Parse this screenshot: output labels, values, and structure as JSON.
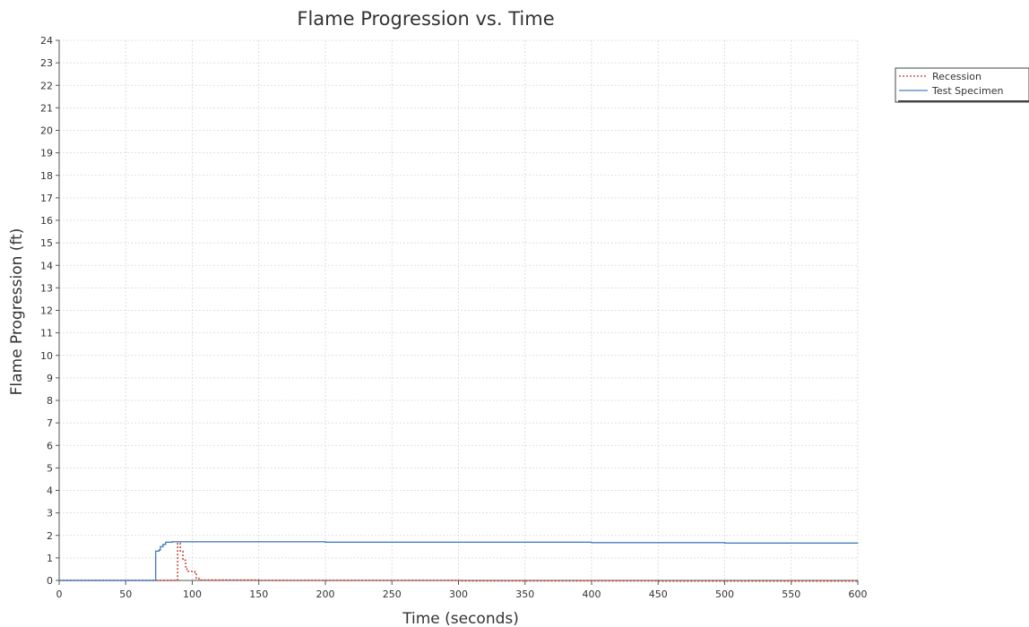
{
  "chart_data": {
    "type": "line",
    "title": "Flame Progression vs. Time",
    "xlabel": "Time (seconds)",
    "ylabel": "Flame Progression (ft)",
    "xlim": [
      0,
      600
    ],
    "ylim": [
      0,
      24
    ],
    "x_ticks": [
      "0",
      "50",
      "100",
      "150",
      "200",
      "250",
      "300",
      "350",
      "400",
      "450",
      "500",
      "550",
      "600"
    ],
    "y_ticks": [
      "0",
      "1",
      "2",
      "3",
      "4",
      "5",
      "6",
      "7",
      "8",
      "9",
      "10",
      "11",
      "12",
      "13",
      "14",
      "15",
      "16",
      "17",
      "18",
      "19",
      "20",
      "21",
      "22",
      "23",
      "24"
    ],
    "grid": true,
    "legend_position": "top-right outside",
    "series": [
      {
        "name": "Recession",
        "color": "#c0392b",
        "style": "dotted",
        "x": [
          0,
          88,
          89,
          91,
          93,
          95,
          96,
          100,
          102,
          103,
          105,
          150,
          300,
          450,
          600
        ],
        "y": [
          0,
          0,
          1.65,
          1.3,
          0.9,
          0.6,
          0.4,
          0.4,
          0.35,
          0.1,
          0.02,
          0.0,
          -0.02,
          -0.03,
          -0.05
        ]
      },
      {
        "name": "Test Specimen",
        "color": "#4a7fc1",
        "style": "solid",
        "x": [
          0,
          72,
          72.5,
          75,
          76,
          78,
          80,
          85,
          100,
          200,
          300,
          400,
          500,
          600
        ],
        "y": [
          0,
          0,
          1.3,
          1.35,
          1.5,
          1.6,
          1.7,
          1.72,
          1.72,
          1.7,
          1.7,
          1.68,
          1.66,
          1.65
        ]
      }
    ]
  }
}
